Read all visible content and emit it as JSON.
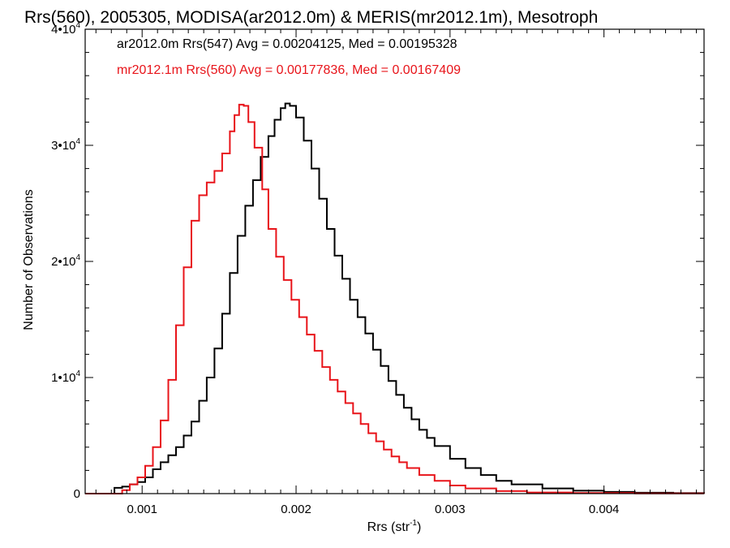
{
  "chart_data": {
    "type": "line",
    "title": "Rrs(560), 2005305, MODISA(ar2012.0m) & MERIS(mr2012.1m), Mesotroph",
    "xlabel": "Rrs (str",
    "xlabel_sup": "-1",
    "xlabel_suffix": ")",
    "ylabel": "Number of Observations",
    "xlim": [
      0.00063,
      0.00465
    ],
    "ylim": [
      0,
      40000
    ],
    "grid": false,
    "x_ticks": [
      {
        "value": 0.001,
        "label": "0.001"
      },
      {
        "value": 0.002,
        "label": "0.002"
      },
      {
        "value": 0.003,
        "label": "0.003"
      },
      {
        "value": 0.004,
        "label": "0.004"
      }
    ],
    "y_ticks": [
      {
        "value": 0,
        "mant": "0",
        "sup": ""
      },
      {
        "value": 10000,
        "mant": "1•10",
        "sup": "4"
      },
      {
        "value": 20000,
        "mant": "2•10",
        "sup": "4"
      },
      {
        "value": 30000,
        "mant": "3•10",
        "sup": "4"
      },
      {
        "value": 40000,
        "mant": "4•10",
        "sup": "4"
      }
    ],
    "annotations": [
      {
        "text": "ar2012.0m Rrs(547) Avg = 0.00204125, Med = 0.00195328",
        "color": "#000000"
      },
      {
        "text": "mr2012.1m Rrs(560) Avg = 0.00177836, Med = 0.00167409",
        "color": "#e8141a"
      }
    ],
    "series": [
      {
        "color": "#000000",
        "points": [
          [
            0.00063,
            0
          ],
          [
            0.0008,
            0
          ],
          [
            0.00082,
            500
          ],
          [
            0.00087,
            600
          ],
          [
            0.00092,
            800
          ],
          [
            0.00097,
            1000
          ],
          [
            0.00102,
            1400
          ],
          [
            0.00107,
            2100
          ],
          [
            0.00112,
            2700
          ],
          [
            0.00117,
            3300
          ],
          [
            0.00122,
            4000
          ],
          [
            0.00127,
            5000
          ],
          [
            0.00132,
            6200
          ],
          [
            0.00137,
            8000
          ],
          [
            0.00142,
            10000
          ],
          [
            0.00147,
            12500
          ],
          [
            0.00152,
            15500
          ],
          [
            0.00157,
            19000
          ],
          [
            0.00162,
            22200
          ],
          [
            0.00167,
            24800
          ],
          [
            0.00172,
            27000
          ],
          [
            0.00177,
            29000
          ],
          [
            0.00182,
            30800
          ],
          [
            0.00186,
            32200
          ],
          [
            0.0019,
            33200
          ],
          [
            0.00193,
            33600
          ],
          [
            0.00196,
            33400
          ],
          [
            0.002,
            32400
          ],
          [
            0.00205,
            30400
          ],
          [
            0.0021,
            28000
          ],
          [
            0.00215,
            25400
          ],
          [
            0.0022,
            22800
          ],
          [
            0.00225,
            20500
          ],
          [
            0.0023,
            18500
          ],
          [
            0.00235,
            16700
          ],
          [
            0.0024,
            15200
          ],
          [
            0.00245,
            13800
          ],
          [
            0.0025,
            12400
          ],
          [
            0.00255,
            11000
          ],
          [
            0.0026,
            9700
          ],
          [
            0.00265,
            8500
          ],
          [
            0.0027,
            7400
          ],
          [
            0.00275,
            6400
          ],
          [
            0.0028,
            5500
          ],
          [
            0.00285,
            4800
          ],
          [
            0.0029,
            4100
          ],
          [
            0.003,
            3000
          ],
          [
            0.0031,
            2200
          ],
          [
            0.0032,
            1600
          ],
          [
            0.0033,
            1100
          ],
          [
            0.0034,
            800
          ],
          [
            0.0036,
            450
          ],
          [
            0.0038,
            250
          ],
          [
            0.004,
            150
          ],
          [
            0.0042,
            80
          ],
          [
            0.00445,
            40
          ],
          [
            0.00465,
            20
          ]
        ]
      },
      {
        "color": "#e8141a",
        "points": [
          [
            0.00063,
            0
          ],
          [
            0.00082,
            0
          ],
          [
            0.00087,
            300
          ],
          [
            0.00092,
            800
          ],
          [
            0.00097,
            1400
          ],
          [
            0.00102,
            2400
          ],
          [
            0.00107,
            4000
          ],
          [
            0.00112,
            6300
          ],
          [
            0.00117,
            9800
          ],
          [
            0.00122,
            14500
          ],
          [
            0.00127,
            19500
          ],
          [
            0.00132,
            23500
          ],
          [
            0.00137,
            25700
          ],
          [
            0.00142,
            26800
          ],
          [
            0.00147,
            27800
          ],
          [
            0.00152,
            29300
          ],
          [
            0.00157,
            31200
          ],
          [
            0.0016,
            32600
          ],
          [
            0.00163,
            33500
          ],
          [
            0.00166,
            33400
          ],
          [
            0.00169,
            32000
          ],
          [
            0.00173,
            29800
          ],
          [
            0.00178,
            26200
          ],
          [
            0.00182,
            22800
          ],
          [
            0.00187,
            20400
          ],
          [
            0.00192,
            18400
          ],
          [
            0.00197,
            16700
          ],
          [
            0.00202,
            15200
          ],
          [
            0.00207,
            13700
          ],
          [
            0.00212,
            12300
          ],
          [
            0.00217,
            10900
          ],
          [
            0.00222,
            9800
          ],
          [
            0.00227,
            8800
          ],
          [
            0.00232,
            7800
          ],
          [
            0.00237,
            6900
          ],
          [
            0.00242,
            6000
          ],
          [
            0.00247,
            5200
          ],
          [
            0.00252,
            4500
          ],
          [
            0.00257,
            3800
          ],
          [
            0.00262,
            3200
          ],
          [
            0.00267,
            2700
          ],
          [
            0.00272,
            2200
          ],
          [
            0.0028,
            1600
          ],
          [
            0.0029,
            1100
          ],
          [
            0.003,
            700
          ],
          [
            0.0031,
            450
          ],
          [
            0.0033,
            220
          ],
          [
            0.0035,
            100
          ],
          [
            0.0038,
            50
          ],
          [
            0.0042,
            20
          ],
          [
            0.00465,
            10
          ]
        ]
      }
    ]
  }
}
